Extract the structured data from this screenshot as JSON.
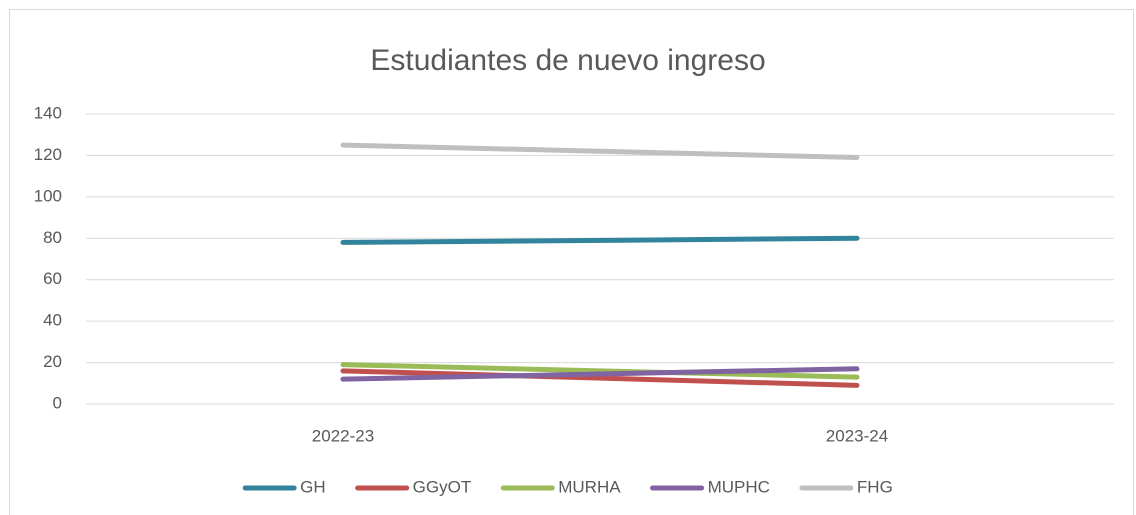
{
  "chart_data": {
    "type": "line",
    "title": "Estudiantes de nuevo ingreso",
    "categories": [
      "2022-23",
      "2023-24"
    ],
    "series": [
      {
        "name": "GH",
        "color": "#31849b",
        "values": [
          78,
          80
        ]
      },
      {
        "name": "GGyOT",
        "color": "#c0504d",
        "values": [
          16,
          9
        ]
      },
      {
        "name": "MURHA",
        "color": "#9bbb59",
        "values": [
          19,
          13
        ]
      },
      {
        "name": "MUPHC",
        "color": "#8064a2",
        "values": [
          12,
          17
        ]
      },
      {
        "name": "FHG",
        "color": "#bfbfbf",
        "values": [
          125,
          119
        ]
      }
    ],
    "ylim": [
      0,
      140
    ],
    "yticks": [
      0,
      20,
      40,
      60,
      80,
      100,
      120,
      140
    ],
    "grid": true,
    "legend": "bottom"
  }
}
